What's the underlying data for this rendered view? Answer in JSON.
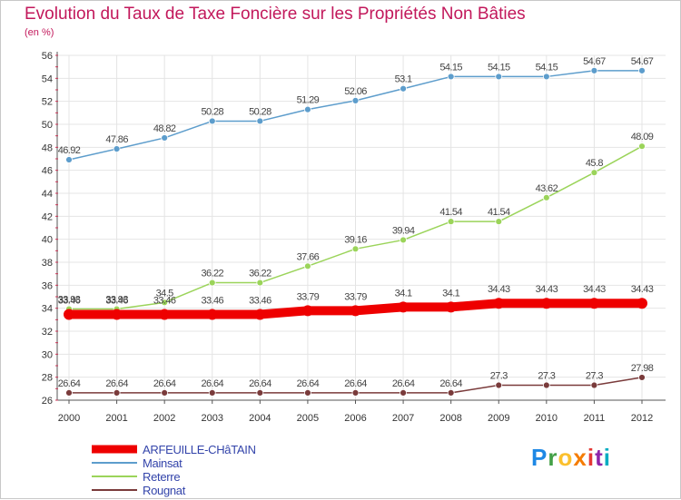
{
  "title": "Evolution du Taux de Taxe Foncière sur les Propriétés Non Bâties",
  "unit_label": "(en %)",
  "logo_text": "Proxiti",
  "chart_data": {
    "type": "line",
    "title": "Evolution du Taux de Taxe Foncière sur les Propriétés Non Bâties",
    "ylabel": "(en %)",
    "xlabel": "",
    "ylim": [
      26,
      56
    ],
    "yticks": [
      26,
      28,
      30,
      32,
      34,
      36,
      38,
      40,
      42,
      44,
      46,
      48,
      50,
      52,
      54,
      56
    ],
    "grid": true,
    "legend_position": "bottom-left",
    "categories": [
      "2000",
      "2001",
      "2002",
      "2003",
      "2004",
      "2005",
      "2006",
      "2007",
      "2008",
      "2009",
      "2010",
      "2011",
      "2012"
    ],
    "series": [
      {
        "name": "ARFEUILLE-CHâTAIN",
        "color": "#ee0000",
        "emphasis": true,
        "values": [
          33.46,
          33.46,
          33.46,
          33.46,
          33.46,
          33.79,
          33.79,
          34.1,
          34.1,
          34.43,
          34.43,
          34.43,
          34.43
        ],
        "labels": [
          "33.46",
          "33.46",
          "33.46",
          "33.46",
          "33.46",
          "33.79",
          "33.79",
          "34.1",
          "34.1",
          "34.43",
          "34.43",
          "34.43",
          "34.43"
        ]
      },
      {
        "name": "Mainsat",
        "color": "#5d9dcc",
        "emphasis": false,
        "values": [
          46.92,
          47.86,
          48.82,
          50.28,
          50.28,
          51.29,
          52.06,
          53.1,
          54.15,
          54.15,
          54.15,
          54.67,
          54.67
        ],
        "labels": [
          "46.92",
          "47.86",
          "48.82",
          "50.28",
          "50.28",
          "51.29",
          "52.06",
          "53.1",
          "54.15",
          "54.15",
          "54.15",
          "54.67",
          "54.67"
        ]
      },
      {
        "name": "Reterre",
        "color": "#9bd45a",
        "emphasis": false,
        "values": [
          33.93,
          33.93,
          34.5,
          36.22,
          36.22,
          37.66,
          39.16,
          39.94,
          41.54,
          41.54,
          43.62,
          45.8,
          48.09
        ],
        "labels": [
          "33.93",
          "33.93",
          "34.5",
          "36.22",
          "36.22",
          "37.66",
          "39.16",
          "39.94",
          "41.54",
          "41.54",
          "43.62",
          "45.8",
          "48.09"
        ]
      },
      {
        "name": "Rougnat",
        "color": "#7a3b3b",
        "emphasis": false,
        "values": [
          26.64,
          26.64,
          26.64,
          26.64,
          26.64,
          26.64,
          26.64,
          26.64,
          26.64,
          27.3,
          27.3,
          27.3,
          27.98
        ],
        "labels": [
          "26.64",
          "26.64",
          "26.64",
          "26.64",
          "26.64",
          "26.64",
          "26.64",
          "26.64",
          "26.64",
          "27.3",
          "27.3",
          "27.3",
          "27.98"
        ]
      }
    ]
  }
}
